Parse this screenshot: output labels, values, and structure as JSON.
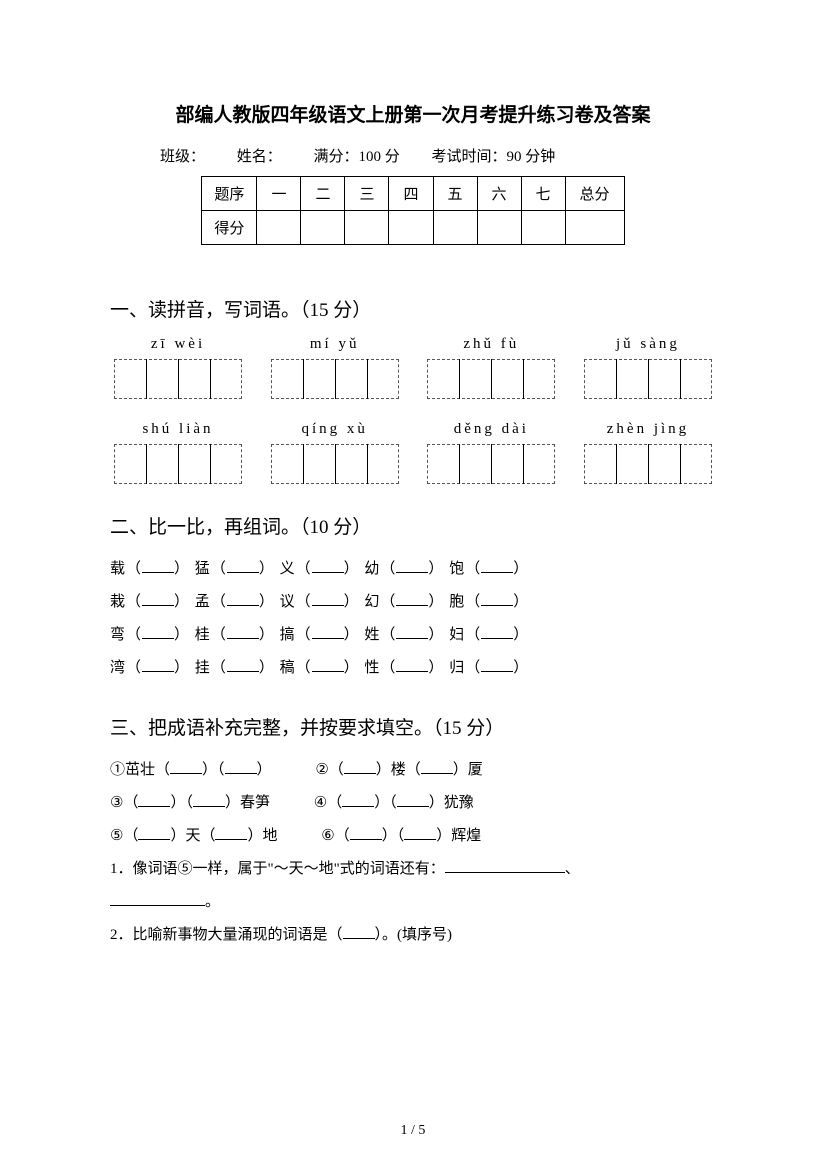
{
  "title": "部编人教版四年级语文上册第一次月考提升练习卷及答案",
  "info": {
    "class_label": "班级：",
    "name_label": "姓名：",
    "full_score": "满分：100 分",
    "exam_time": "考试时间：90 分钟"
  },
  "score_table": {
    "header_label": "题序",
    "cols": [
      "一",
      "二",
      "三",
      "四",
      "五",
      "六",
      "七",
      "总分"
    ],
    "score_label": "得分"
  },
  "section1": {
    "title": "一、读拼音，写词语。（15 分）",
    "row1": [
      "zī  wèi",
      "mí  yǔ",
      "zhǔ  fù",
      "jǔ  sàng"
    ],
    "row2": [
      "shú liàn",
      "qíng xù",
      "děng dài",
      "zhèn jìng"
    ]
  },
  "section2": {
    "title": "二、比一比，再组词。（10 分）",
    "lines": [
      [
        "载",
        "猛",
        "义",
        "幼",
        "饱"
      ],
      [
        "栽",
        "孟",
        "议",
        "幻",
        "胞"
      ],
      [
        "弯",
        "桂",
        "搞",
        "姓",
        "妇"
      ],
      [
        "湾",
        "挂",
        "稿",
        "性",
        "归"
      ]
    ]
  },
  "section3": {
    "title": "三、把成语补充完整，并按要求填空。（15 分）",
    "idioms": [
      {
        "num": "①",
        "parts": [
          "茁壮（",
          "）（",
          "）"
        ]
      },
      {
        "num": "②",
        "parts": [
          "（",
          "）楼（",
          "）厦"
        ]
      },
      {
        "num": "③",
        "parts": [
          "（",
          "）（",
          "）春笋"
        ]
      },
      {
        "num": "④",
        "parts": [
          "（",
          "）（",
          "）犹豫"
        ]
      },
      {
        "num": "⑤",
        "parts": [
          "（",
          "）天（",
          "）地"
        ]
      },
      {
        "num": "⑥",
        "parts": [
          "（",
          "）（",
          "）辉煌"
        ]
      }
    ],
    "q1a": "1．像词语⑤一样，属于\"～天～地\"式的词语还有：",
    "q1b": "。",
    "q2": "2．比喻新事物大量涌现的词语是（",
    "q2b": "）。(填序号)"
  },
  "page_num": "1 / 5"
}
